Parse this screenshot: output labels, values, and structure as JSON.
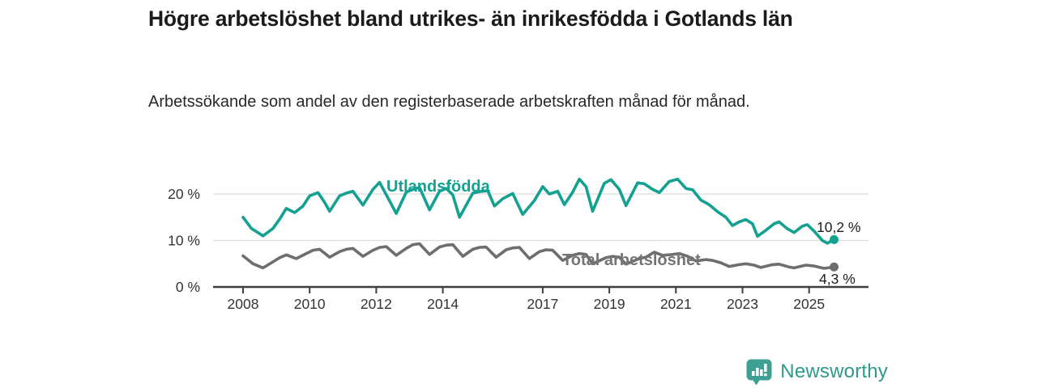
{
  "branding": {
    "logo_text": "Newsworthy",
    "brand_color": "#3da093"
  },
  "chart_data": {
    "type": "line",
    "title": "Högre arbetslöshet bland utrikes- än inrikesfödda i Gotlands län",
    "subtitle": "Arbetssökande som andel av den registerbaserade arbetskraften månad för månad.",
    "unit": "%",
    "legend_position": "inline-labels",
    "grid": "horizontal-only",
    "x_axis": {
      "ticks": [
        2008,
        2010,
        2012,
        2014,
        2017,
        2019,
        2021,
        2023,
        2025
      ],
      "range": [
        2007.1,
        2026.8
      ]
    },
    "y_axis": {
      "ticks": [
        {
          "value": 0,
          "label": "0 %"
        },
        {
          "value": 10,
          "label": "10 %"
        },
        {
          "value": 20,
          "label": "20 %"
        }
      ],
      "gridlines": [
        10,
        20
      ],
      "range": [
        0,
        25
      ]
    },
    "colors": {
      "accent": "#14a191",
      "secondary": "#6e6e6e",
      "axis": "#3f3f3f",
      "grid": "#dcdcdc",
      "tick_text": "#333333"
    },
    "series": [
      {
        "name": "Utlandsfödda",
        "color": "#14a191",
        "end_value": 10.2,
        "end_label": "10,2 %",
        "points": [
          [
            2008.0,
            15.0
          ],
          [
            2008.25,
            12.6
          ],
          [
            2008.6,
            11.0
          ],
          [
            2008.9,
            12.6
          ],
          [
            2009.1,
            14.6
          ],
          [
            2009.3,
            16.9
          ],
          [
            2009.55,
            16.0
          ],
          [
            2009.8,
            17.4
          ],
          [
            2010.0,
            19.6
          ],
          [
            2010.25,
            20.3
          ],
          [
            2010.45,
            18.2
          ],
          [
            2010.6,
            16.3
          ],
          [
            2010.9,
            19.6
          ],
          [
            2011.1,
            20.2
          ],
          [
            2011.3,
            20.6
          ],
          [
            2011.6,
            17.6
          ],
          [
            2011.9,
            21.0
          ],
          [
            2012.1,
            22.5
          ],
          [
            2012.35,
            19.2
          ],
          [
            2012.6,
            15.8
          ],
          [
            2012.9,
            20.4
          ],
          [
            2013.1,
            21.0
          ],
          [
            2013.3,
            21.4
          ],
          [
            2013.6,
            16.6
          ],
          [
            2013.9,
            20.6
          ],
          [
            2014.1,
            21.2
          ],
          [
            2014.3,
            19.8
          ],
          [
            2014.5,
            15.0
          ],
          [
            2014.9,
            20.2
          ],
          [
            2015.1,
            20.5
          ],
          [
            2015.35,
            20.7
          ],
          [
            2015.55,
            17.4
          ],
          [
            2015.8,
            19.0
          ],
          [
            2016.1,
            20.1
          ],
          [
            2016.4,
            15.6
          ],
          [
            2016.75,
            18.6
          ],
          [
            2017.0,
            21.6
          ],
          [
            2017.2,
            20.0
          ],
          [
            2017.45,
            20.6
          ],
          [
            2017.65,
            17.7
          ],
          [
            2017.9,
            20.4
          ],
          [
            2018.1,
            23.2
          ],
          [
            2018.3,
            21.6
          ],
          [
            2018.5,
            16.3
          ],
          [
            2018.85,
            22.3
          ],
          [
            2019.05,
            23.1
          ],
          [
            2019.3,
            21.0
          ],
          [
            2019.5,
            17.5
          ],
          [
            2019.85,
            22.4
          ],
          [
            2020.05,
            22.2
          ],
          [
            2020.3,
            21.0
          ],
          [
            2020.5,
            20.3
          ],
          [
            2020.8,
            22.7
          ],
          [
            2021.05,
            23.2
          ],
          [
            2021.3,
            21.2
          ],
          [
            2021.5,
            20.9
          ],
          [
            2021.75,
            18.7
          ],
          [
            2022.0,
            17.7
          ],
          [
            2022.25,
            16.2
          ],
          [
            2022.5,
            15.0
          ],
          [
            2022.7,
            13.2
          ],
          [
            2022.9,
            14.0
          ],
          [
            2023.1,
            14.5
          ],
          [
            2023.3,
            13.6
          ],
          [
            2023.45,
            10.9
          ],
          [
            2023.7,
            12.2
          ],
          [
            2023.95,
            13.6
          ],
          [
            2024.1,
            14.0
          ],
          [
            2024.35,
            12.5
          ],
          [
            2024.55,
            11.7
          ],
          [
            2024.8,
            13.1
          ],
          [
            2024.95,
            13.4
          ],
          [
            2025.15,
            12.0
          ],
          [
            2025.4,
            10.0
          ],
          [
            2025.55,
            9.4
          ],
          [
            2025.75,
            10.2
          ]
        ]
      },
      {
        "name": "Total arbetslöshet",
        "color": "#6e6e6e",
        "end_value": 4.3,
        "end_label": "4,3 %",
        "points": [
          [
            2008.0,
            6.7
          ],
          [
            2008.3,
            5.0
          ],
          [
            2008.6,
            4.1
          ],
          [
            2008.9,
            5.4
          ],
          [
            2009.1,
            6.3
          ],
          [
            2009.3,
            6.9
          ],
          [
            2009.6,
            6.1
          ],
          [
            2009.9,
            7.2
          ],
          [
            2010.1,
            7.9
          ],
          [
            2010.3,
            8.1
          ],
          [
            2010.6,
            6.4
          ],
          [
            2010.9,
            7.6
          ],
          [
            2011.1,
            8.1
          ],
          [
            2011.3,
            8.3
          ],
          [
            2011.6,
            6.6
          ],
          [
            2011.9,
            7.9
          ],
          [
            2012.1,
            8.5
          ],
          [
            2012.3,
            8.7
          ],
          [
            2012.6,
            6.8
          ],
          [
            2012.9,
            8.3
          ],
          [
            2013.1,
            9.1
          ],
          [
            2013.3,
            9.3
          ],
          [
            2013.6,
            7.0
          ],
          [
            2013.9,
            8.6
          ],
          [
            2014.1,
            9.0
          ],
          [
            2014.3,
            9.1
          ],
          [
            2014.6,
            6.6
          ],
          [
            2014.9,
            8.1
          ],
          [
            2015.1,
            8.5
          ],
          [
            2015.3,
            8.6
          ],
          [
            2015.6,
            6.4
          ],
          [
            2015.9,
            8.0
          ],
          [
            2016.1,
            8.4
          ],
          [
            2016.3,
            8.5
          ],
          [
            2016.6,
            6.1
          ],
          [
            2016.9,
            7.6
          ],
          [
            2017.1,
            8.0
          ],
          [
            2017.3,
            7.9
          ],
          [
            2017.6,
            5.7
          ],
          [
            2017.9,
            6.8
          ],
          [
            2018.1,
            7.2
          ],
          [
            2018.3,
            7.0
          ],
          [
            2018.5,
            5.0
          ],
          [
            2018.9,
            6.3
          ],
          [
            2019.1,
            6.6
          ],
          [
            2019.3,
            6.4
          ],
          [
            2019.5,
            4.9
          ],
          [
            2019.9,
            6.1
          ],
          [
            2020.1,
            6.4
          ],
          [
            2020.35,
            7.5
          ],
          [
            2020.6,
            6.8
          ],
          [
            2020.9,
            7.0
          ],
          [
            2021.1,
            7.2
          ],
          [
            2021.35,
            6.6
          ],
          [
            2021.6,
            5.6
          ],
          [
            2021.9,
            5.9
          ],
          [
            2022.1,
            5.7
          ],
          [
            2022.35,
            5.2
          ],
          [
            2022.6,
            4.4
          ],
          [
            2022.9,
            4.8
          ],
          [
            2023.1,
            5.0
          ],
          [
            2023.35,
            4.7
          ],
          [
            2023.55,
            4.2
          ],
          [
            2023.9,
            4.8
          ],
          [
            2024.1,
            4.9
          ],
          [
            2024.4,
            4.3
          ],
          [
            2024.55,
            4.1
          ],
          [
            2024.9,
            4.7
          ],
          [
            2025.15,
            4.5
          ],
          [
            2025.45,
            4.0
          ],
          [
            2025.75,
            4.3
          ]
        ]
      }
    ]
  }
}
